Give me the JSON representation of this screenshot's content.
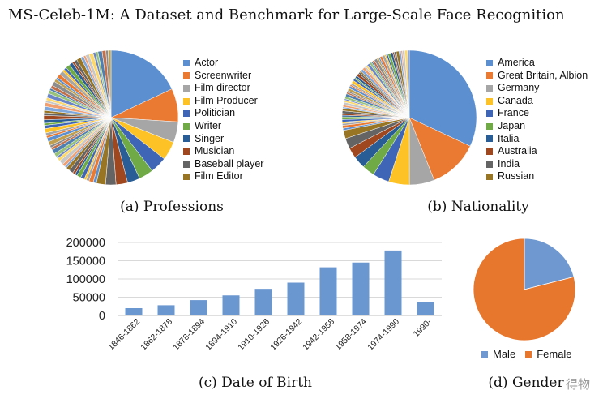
{
  "title": "MS-Celeb-1M: A Dataset and Benchmark for Large-Scale Face Recognition",
  "captions": {
    "a": "(a) Professions",
    "b": "(b) Nationality",
    "c": "(c) Date of Birth",
    "d": "(d) Gender"
  },
  "watermark": "得物",
  "chart_data": [
    {
      "type": "pie",
      "id": "professions",
      "caption": "(a) Professions",
      "labels": [
        "Actor",
        "Screenwriter",
        "Film director",
        "Film Producer",
        "Politician",
        "Writer",
        "Singer",
        "Musician",
        "Baseball player",
        "Film Editor"
      ],
      "colors": [
        "#5b8fd0",
        "#ea7a32",
        "#a6a6a6",
        "#fdc326",
        "#3f66b6",
        "#6faa46",
        "#295d95",
        "#9f4820",
        "#646464",
        "#987525"
      ],
      "values": [
        18,
        8,
        5,
        4.5,
        4,
        3.5,
        3,
        2.8,
        2.5,
        2.2
      ],
      "other_slices": 60,
      "other_share": 46.5
    },
    {
      "type": "pie",
      "id": "nationality",
      "caption": "(b) Nationality",
      "labels": [
        "America",
        "Great Britain, Albion",
        "Germany",
        "Canada",
        "France",
        "Japan",
        "Italia",
        "Australia",
        "India",
        "Russian"
      ],
      "colors": [
        "#5b8fd0",
        "#ea7a32",
        "#a6a6a6",
        "#fdc326",
        "#3f66b6",
        "#6faa46",
        "#295d95",
        "#9f4820",
        "#646464",
        "#987525"
      ],
      "values": [
        32,
        12,
        6,
        5,
        4,
        3,
        3,
        2.5,
        2.5,
        2
      ],
      "other_slices": 55,
      "other_share": 28
    },
    {
      "type": "bar",
      "id": "date-of-birth",
      "caption": "(c) Date of Birth",
      "categories": [
        "1846-1862",
        "1862-1878",
        "1878-1894",
        "1894-1910",
        "1910-1926",
        "1926-1942",
        "1942-1958",
        "1958-1974",
        "1974-1990",
        "1990-"
      ],
      "values": [
        20000,
        28000,
        42000,
        55000,
        73000,
        90000,
        132000,
        145000,
        178000,
        37000
      ],
      "yticks": [
        "200000",
        "150000",
        "100000",
        "50000",
        "0"
      ],
      "ylim": [
        0,
        200000
      ],
      "color": "#6b97d1"
    },
    {
      "type": "pie",
      "id": "gender",
      "caption": "(d) Gender",
      "labels": [
        "Male",
        "Female"
      ],
      "values": [
        21,
        79
      ],
      "colors": [
        "#6e98cf",
        "#e8772e"
      ]
    }
  ]
}
